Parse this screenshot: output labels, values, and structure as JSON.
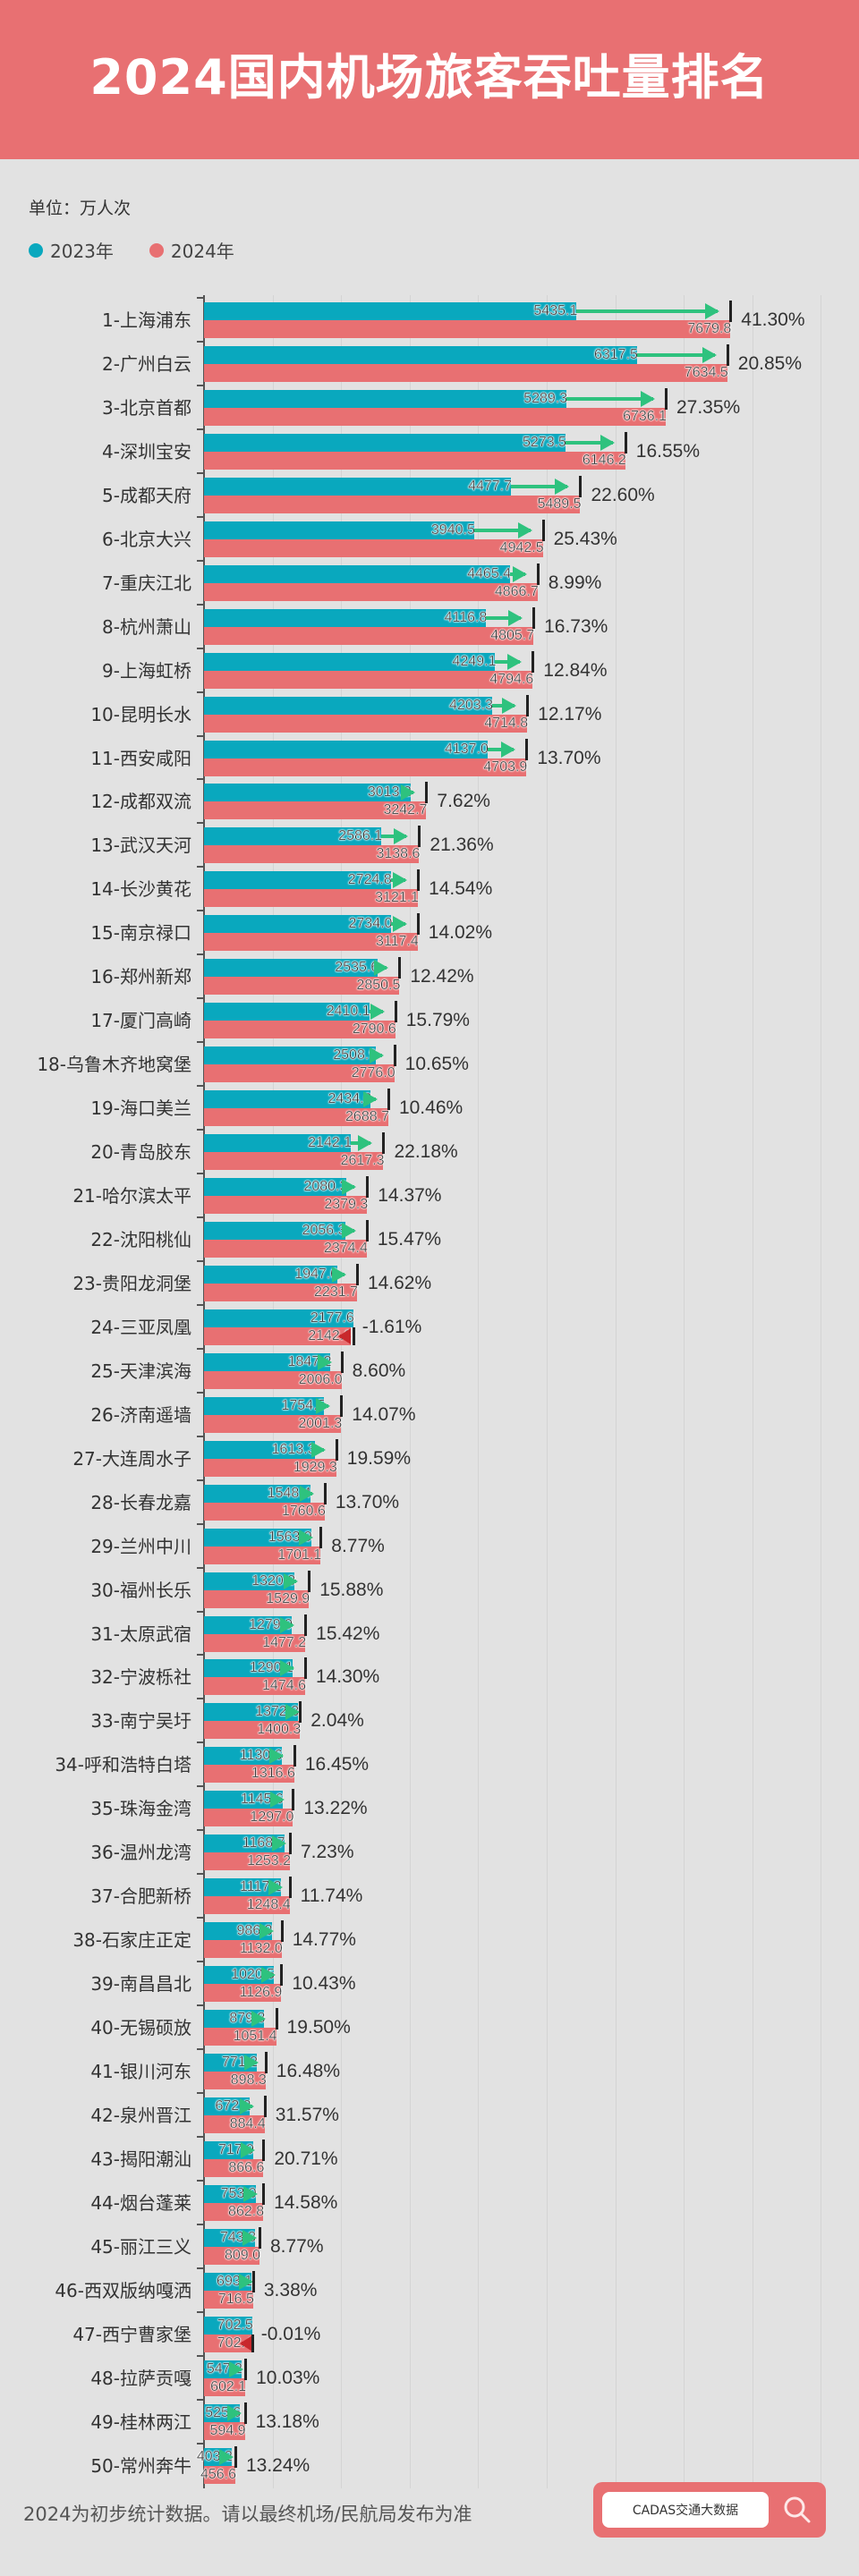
{
  "header": {
    "title": "2024国内机场旅客吞吐量排名"
  },
  "unit_label": "单位：万人次",
  "legend": [
    {
      "label": "2023年",
      "color": "#09a8be"
    },
    {
      "label": "2024年",
      "color": "#e87072"
    }
  ],
  "footer": {
    "note": "2024为初步统计数据。请以最终机场/民航局发布为准",
    "search_text": "CADAS交通大数据",
    "search_icon": "search-icon"
  },
  "colors": {
    "header_bg": "#e87072",
    "bar_2023": "#09a8be",
    "bar_2024": "#e87072",
    "increase_arrow": "#2ec27e",
    "decrease_arrow": "#c8282c",
    "background": "#e2e2e2"
  },
  "chart_data": {
    "type": "bar",
    "orientation": "horizontal",
    "title": "2024国内机场旅客吞吐量排名",
    "ylabel": "单位：万人次",
    "xlabel": "",
    "legend_position": "top-left",
    "grid": true,
    "xlim": [
      0,
      9000
    ],
    "categories": [
      "1-上海浦东",
      "2-广州白云",
      "3-北京首都",
      "4-深圳宝安",
      "5-成都天府",
      "6-北京大兴",
      "7-重庆江北",
      "8-杭州萧山",
      "9-上海虹桥",
      "10-昆明长水",
      "11-西安咸阳",
      "12-成都双流",
      "13-武汉天河",
      "14-长沙黄花",
      "15-南京禄口",
      "16-郑州新郑",
      "17-厦门高崎",
      "18-乌鲁木齐地窝堡",
      "19-海口美兰",
      "20-青岛胶东",
      "21-哈尔滨太平",
      "22-沈阳桃仙",
      "23-贵阳龙洞堡",
      "24-三亚凤凰",
      "25-天津滨海",
      "26-济南遥墙",
      "27-大连周水子",
      "28-长春龙嘉",
      "29-兰州中川",
      "30-福州长乐",
      "31-太原武宿",
      "32-宁波栎社",
      "33-南宁吴圩",
      "34-呼和浩特白塔",
      "35-珠海金湾",
      "36-温州龙湾",
      "37-合肥新桥",
      "38-石家庄正定",
      "39-南昌昌北",
      "40-无锡硕放",
      "41-银川河东",
      "42-泉州晋江",
      "43-揭阳潮汕",
      "44-烟台蓬莱",
      "45-丽江三义",
      "46-西双版纳嘎洒",
      "47-西宁曹家堡",
      "48-拉萨贡嘎",
      "49-桂林两江",
      "50-常州奔牛"
    ],
    "series": [
      {
        "name": "2023年",
        "values": [
          5435.1,
          6317.5,
          5289.3,
          5273.5,
          4477.7,
          3940.5,
          4465.4,
          4116.8,
          4249.1,
          4203.3,
          4137.0,
          3013.2,
          2586.1,
          2724.8,
          2734.0,
          2535.6,
          2410.1,
          2508.9,
          2434.0,
          2142.1,
          2080.3,
          2056.3,
          1947.0,
          2177.6,
          1847.2,
          1754.5,
          1613.3,
          1548.4,
          1563.9,
          1320.3,
          1279.9,
          1290.1,
          1372.3,
          1130.6,
          1145.6,
          1168.7,
          1117.2,
          986.3,
          1020.5,
          879.8,
          771.2,
          672.2,
          717.9,
          753.0,
          743.8,
          693.1,
          702.5,
          547.2,
          525.6,
          403.2
        ]
      },
      {
        "name": "2024年",
        "values": [
          7679.8,
          7634.5,
          6736.1,
          6146.2,
          5489.5,
          4942.5,
          4866.7,
          4805.7,
          4794.6,
          4714.8,
          4703.9,
          3242.7,
          3138.6,
          3121.1,
          3117.4,
          2850.5,
          2790.6,
          2776.0,
          2688.7,
          2617.3,
          2379.3,
          2374.4,
          2231.7,
          2142.6,
          2006.0,
          2001.3,
          1929.3,
          1760.6,
          1701.1,
          1529.9,
          1477.2,
          1474.6,
          1400.3,
          1316.6,
          1297.0,
          1253.2,
          1248.4,
          1132.0,
          1126.9,
          1051.4,
          898.3,
          884.4,
          866.6,
          862.8,
          809.0,
          716.5,
          702.4,
          602.1,
          594.9,
          456.6
        ]
      }
    ],
    "growth": [
      "41.30%",
      "20.85%",
      "27.35%",
      "16.55%",
      "22.60%",
      "25.43%",
      "8.99%",
      "16.73%",
      "12.84%",
      "12.17%",
      "13.70%",
      "7.62%",
      "21.36%",
      "14.54%",
      "14.02%",
      "12.42%",
      "15.79%",
      "10.65%",
      "10.46%",
      "22.18%",
      "14.37%",
      "15.47%",
      "14.62%",
      "-1.61%",
      "8.60%",
      "14.07%",
      "19.59%",
      "13.70%",
      "8.77%",
      "15.88%",
      "15.42%",
      "14.30%",
      "2.04%",
      "16.45%",
      "13.22%",
      "7.23%",
      "11.74%",
      "14.77%",
      "10.43%",
      "19.50%",
      "16.48%",
      "31.57%",
      "20.71%",
      "14.58%",
      "8.77%",
      "3.38%",
      "-0.01%",
      "10.03%",
      "13.18%",
      "13.24%"
    ]
  }
}
